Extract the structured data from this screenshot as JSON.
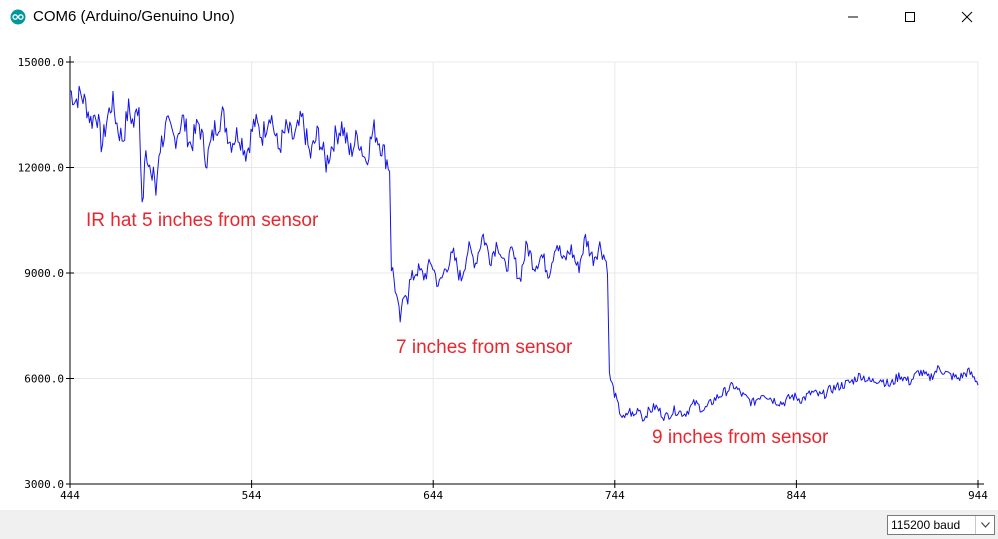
{
  "window": {
    "title": "COM6 (Arduino/Genuino Uno)",
    "icons": {
      "app": "arduino-logo-icon",
      "minimize": "minimize-icon",
      "maximize": "maximize-icon",
      "close": "close-icon"
    }
  },
  "chart_data": {
    "type": "line",
    "title": "",
    "xlabel": "",
    "ylabel": "",
    "xlim": [
      444,
      944
    ],
    "ylim": [
      3000,
      15000
    ],
    "x_ticks": [
      "444",
      "544",
      "644",
      "744",
      "844",
      "944"
    ],
    "y_ticks": [
      "15000.0",
      "12000.0",
      "9000.0",
      "6000.0",
      "3000.0"
    ],
    "grid": true,
    "series": [
      {
        "color": "#1414e6",
        "approx_profile": [
          {
            "x_start": 444,
            "x_end": 482,
            "y_values": [
              14200,
              13900,
              14100,
              13800,
              13300,
              13600,
              12600,
              13400,
              13900,
              13100,
              12800,
              13700,
              13200,
              13900
            ]
          },
          {
            "x_start": 483,
            "x_end": 492,
            "y_values": [
              12000,
              11000,
              12200,
              12400,
              11600,
              12300,
              11500,
              12100,
              11000,
              11800
            ]
          },
          {
            "x_start": 493,
            "x_end": 620,
            "y_values": [
              12500,
              13200,
              12800,
              13400,
              12600,
              13300,
              12200,
              13100,
              13500,
              12700,
              13000,
              12400,
              13300,
              12900,
              13600,
              12500,
              13100,
              12800,
              13400,
              12300,
              13000,
              12100,
              12800,
              13200,
              12400,
              12900,
              12200,
              13100,
              12600,
              12000
            ]
          },
          {
            "x_start": 621,
            "x_end": 630,
            "y_values": [
              9200,
              8900,
              8400,
              7900,
              7600,
              8200,
              8600,
              8300
            ]
          },
          {
            "x_start": 631,
            "x_end": 740,
            "y_values": [
              8700,
              9100,
              8900,
              9300,
              8600,
              9200,
              9500,
              8800,
              9700,
              9300,
              10100,
              9400,
              9900,
              9100,
              9600,
              8800,
              9800,
              9200,
              9500,
              9000,
              9900,
              9300,
              9700,
              9100,
              10000,
              9400,
              9800,
              9200
            ]
          },
          {
            "x_start": 741,
            "x_end": 760,
            "y_values": [
              6100,
              5600,
              5100,
              4800,
              5100,
              4900,
              5200,
              4800
            ]
          },
          {
            "x_start": 761,
            "x_end": 944,
            "y_values": [
              5000,
              5200,
              4900,
              5100,
              5000,
              5300,
              5100,
              5400,
              5600,
              5800,
              5500,
              5300,
              5600,
              5400,
              5300,
              5500,
              5400,
              5600,
              5500,
              5700,
              5800,
              5900,
              6100,
              5900,
              6000,
              5800,
              6100,
              5900,
              6200,
              6000,
              6300,
              6100,
              6000,
              6200,
              5900
            ]
          }
        ]
      }
    ],
    "annotations": [
      "IR hat 5 inches from sensor",
      "7 inches from sensor",
      "9 inches from sensor"
    ]
  },
  "statusbar": {
    "baud_select": {
      "value": "115200 baud",
      "icon": "chevron-down-icon"
    }
  }
}
